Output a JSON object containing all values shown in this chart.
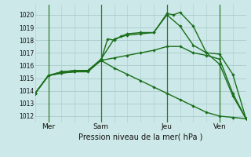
{
  "bg_color": "#cce8e8",
  "grid_color": "#aacccc",
  "line_color": "#1a6e1a",
  "xlabel": "Pression niveau de la mer( hPa )",
  "yticks": [
    1012,
    1013,
    1014,
    1015,
    1016,
    1017,
    1018,
    1019,
    1020
  ],
  "ylim": [
    1011.5,
    1020.8
  ],
  "xlim": [
    0,
    96
  ],
  "xtick_positions": [
    6,
    30,
    60,
    84
  ],
  "xtick_labels": [
    "Mer",
    "Sam",
    "Jeu",
    "Ven"
  ],
  "vline_positions": [
    6,
    30,
    60,
    84
  ],
  "lines": [
    {
      "x": [
        0,
        6,
        12,
        18,
        24,
        30,
        33,
        36,
        39,
        42,
        48,
        54,
        60,
        63,
        66,
        72,
        78,
        84,
        90,
        96
      ],
      "y": [
        1013.8,
        1015.2,
        1015.5,
        1015.6,
        1015.6,
        1016.4,
        1018.1,
        1018.0,
        1018.3,
        1018.5,
        1018.6,
        1018.6,
        1020.1,
        1020.0,
        1020.2,
        1019.1,
        1017.0,
        1016.1,
        1013.6,
        1011.8
      ]
    },
    {
      "x": [
        0,
        6,
        12,
        18,
        24,
        30,
        36,
        42,
        48,
        54,
        60,
        66,
        72,
        78,
        84,
        90,
        96
      ],
      "y": [
        1013.8,
        1015.2,
        1015.5,
        1015.6,
        1015.6,
        1016.5,
        1018.1,
        1018.4,
        1018.5,
        1018.6,
        1020.0,
        1019.1,
        1017.6,
        1017.0,
        1016.9,
        1015.3,
        1011.8
      ]
    },
    {
      "x": [
        0,
        6,
        12,
        18,
        24,
        30,
        36,
        42,
        48,
        54,
        60,
        66,
        72,
        78,
        84,
        90,
        96
      ],
      "y": [
        1013.8,
        1015.2,
        1015.4,
        1015.5,
        1015.6,
        1016.4,
        1016.6,
        1016.8,
        1017.0,
        1017.2,
        1017.5,
        1017.5,
        1017.0,
        1016.8,
        1016.5,
        1013.8,
        1011.8
      ]
    },
    {
      "x": [
        0,
        6,
        12,
        18,
        24,
        30,
        36,
        42,
        48,
        54,
        60,
        66,
        72,
        78,
        84,
        90,
        96
      ],
      "y": [
        1013.8,
        1015.2,
        1015.4,
        1015.5,
        1015.5,
        1016.4,
        1015.8,
        1015.3,
        1014.8,
        1014.3,
        1013.8,
        1013.3,
        1012.8,
        1012.3,
        1012.0,
        1011.9,
        1011.8
      ]
    }
  ]
}
